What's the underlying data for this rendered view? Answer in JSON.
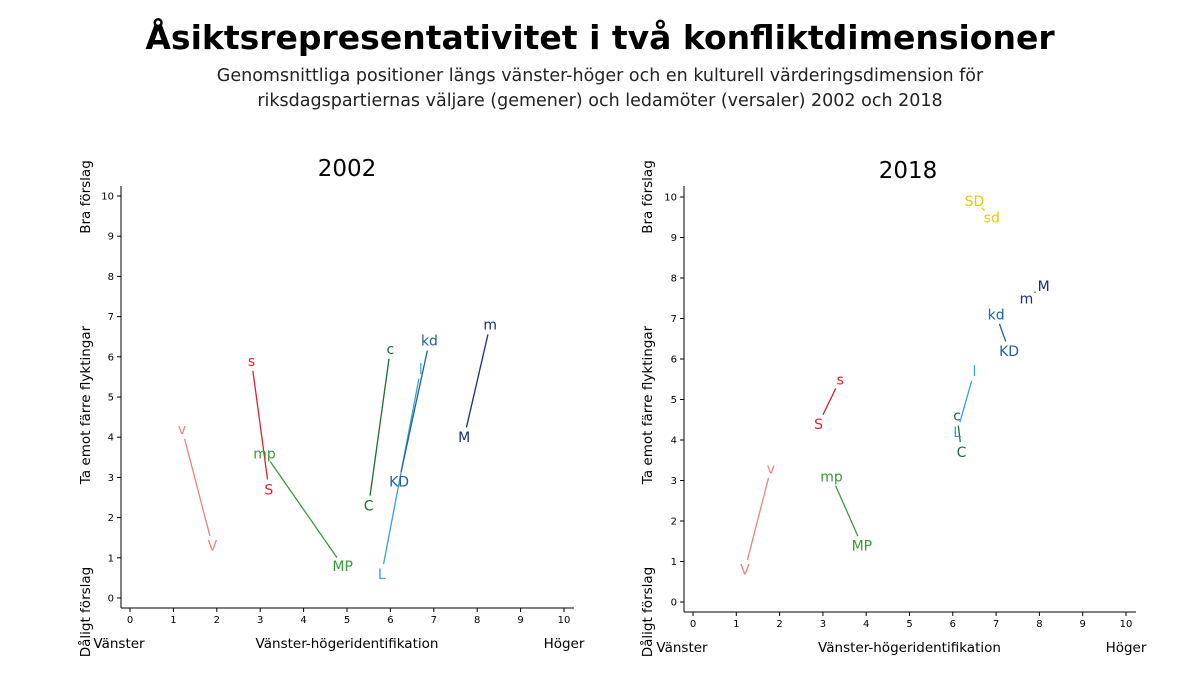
{
  "title": "Åsiktsrepresentativitet i två konfliktdimensioner",
  "subtitle_line1": "Genomsnittliga positioner längs vänster-höger och en kulturell värderingsdimension för",
  "subtitle_line2": "riksdagspartiernas väljare (gemener) och ledamöter (versaler) 2002 och 2018",
  "chart_data": [
    {
      "type": "scatter",
      "title": "2002",
      "xlabel": "Vänster-högeridentifikation",
      "ylabel": "Ta emot färre flyktingar",
      "x_left_label": "Vänster",
      "x_right_label": "Höger",
      "y_top_label": "Bra förslag",
      "y_bottom_label": "Dåligt förslag",
      "xlim": [
        0,
        10
      ],
      "ylim": [
        0,
        10
      ],
      "xticks": [
        "0",
        "1",
        "2",
        "3",
        "4",
        "5",
        "6",
        "7",
        "8",
        "9",
        "10"
      ],
      "yticks": [
        "0",
        "1",
        "2",
        "3",
        "4",
        "5",
        "6",
        "7",
        "8",
        "9",
        "10"
      ],
      "grid": false,
      "pairs": [
        {
          "voter": {
            "label": "v",
            "x": 1.2,
            "y": 4.2
          },
          "mp": {
            "label": "V",
            "x": 1.9,
            "y": 1.3
          },
          "color": "#f08080"
        },
        {
          "voter": {
            "label": "s",
            "x": 2.8,
            "y": 5.9
          },
          "mp": {
            "label": "S",
            "x": 3.2,
            "y": 2.7
          },
          "color": "#e0202e"
        },
        {
          "voter": {
            "label": "mp",
            "x": 3.1,
            "y": 3.6
          },
          "mp": {
            "label": "MP",
            "x": 4.9,
            "y": 0.8
          },
          "color": "#3a9a3a"
        },
        {
          "voter": {
            "label": "c",
            "x": 6.0,
            "y": 6.2
          },
          "mp": {
            "label": "C",
            "x": 5.5,
            "y": 2.3
          },
          "color": "#1e6b35"
        },
        {
          "voter": {
            "label": "l",
            "x": 6.7,
            "y": 5.7
          },
          "mp": {
            "label": "L",
            "x": 5.8,
            "y": 0.6
          },
          "color": "#3aa0d8"
        },
        {
          "voter": {
            "label": "kd",
            "x": 6.9,
            "y": 6.4
          },
          "mp": {
            "label": "KD",
            "x": 6.2,
            "y": 2.9
          },
          "color": "#2060a8"
        },
        {
          "voter": {
            "label": "m",
            "x": 8.3,
            "y": 6.8
          },
          "mp": {
            "label": "M",
            "x": 7.7,
            "y": 4.0
          },
          "color": "#1a2a8a"
        }
      ]
    },
    {
      "type": "scatter",
      "title": "2018",
      "xlabel": "Vänster-högeridentifikation",
      "ylabel": "Ta emot färre flyktingar",
      "x_left_label": "Vänster",
      "x_right_label": "Höger",
      "y_top_label": "Bra förslag",
      "y_bottom_label": "Dåligt förslag",
      "xlim": [
        0,
        10
      ],
      "ylim": [
        0,
        10
      ],
      "xticks": [
        "0",
        "1",
        "2",
        "3",
        "4",
        "5",
        "6",
        "7",
        "8",
        "9",
        "10"
      ],
      "yticks": [
        "0",
        "1",
        "2",
        "3",
        "4",
        "5",
        "6",
        "7",
        "8",
        "9",
        "10"
      ],
      "grid": false,
      "pairs": [
        {
          "voter": {
            "label": "v",
            "x": 1.8,
            "y": 3.3
          },
          "mp": {
            "label": "V",
            "x": 1.2,
            "y": 0.8
          },
          "color": "#f08080"
        },
        {
          "voter": {
            "label": "s",
            "x": 3.4,
            "y": 5.5
          },
          "mp": {
            "label": "S",
            "x": 2.9,
            "y": 4.4
          },
          "color": "#e0202e"
        },
        {
          "voter": {
            "label": "mp",
            "x": 3.2,
            "y": 3.1
          },
          "mp": {
            "label": "MP",
            "x": 3.9,
            "y": 1.4
          },
          "color": "#3a9a3a"
        },
        {
          "voter": {
            "label": "c",
            "x": 6.1,
            "y": 4.6
          },
          "mp": {
            "label": "C",
            "x": 6.2,
            "y": 3.7
          },
          "color": "#1e6b35"
        },
        {
          "voter": {
            "label": "l",
            "x": 6.5,
            "y": 5.7
          },
          "mp": {
            "label": "L",
            "x": 6.1,
            "y": 4.2
          },
          "color": "#3aa0d8"
        },
        {
          "voter": {
            "label": "kd",
            "x": 7.0,
            "y": 7.1
          },
          "mp": {
            "label": "KD",
            "x": 7.3,
            "y": 6.2
          },
          "color": "#2060a8"
        },
        {
          "voter": {
            "label": "m",
            "x": 7.7,
            "y": 7.5
          },
          "mp": {
            "label": "M",
            "x": 8.1,
            "y": 7.8
          },
          "color": "#1a2a8a"
        },
        {
          "voter": {
            "label": "sd",
            "x": 6.9,
            "y": 9.5
          },
          "mp": {
            "label": "SD",
            "x": 6.5,
            "y": 9.9
          },
          "color": "#f0c800"
        }
      ]
    }
  ]
}
